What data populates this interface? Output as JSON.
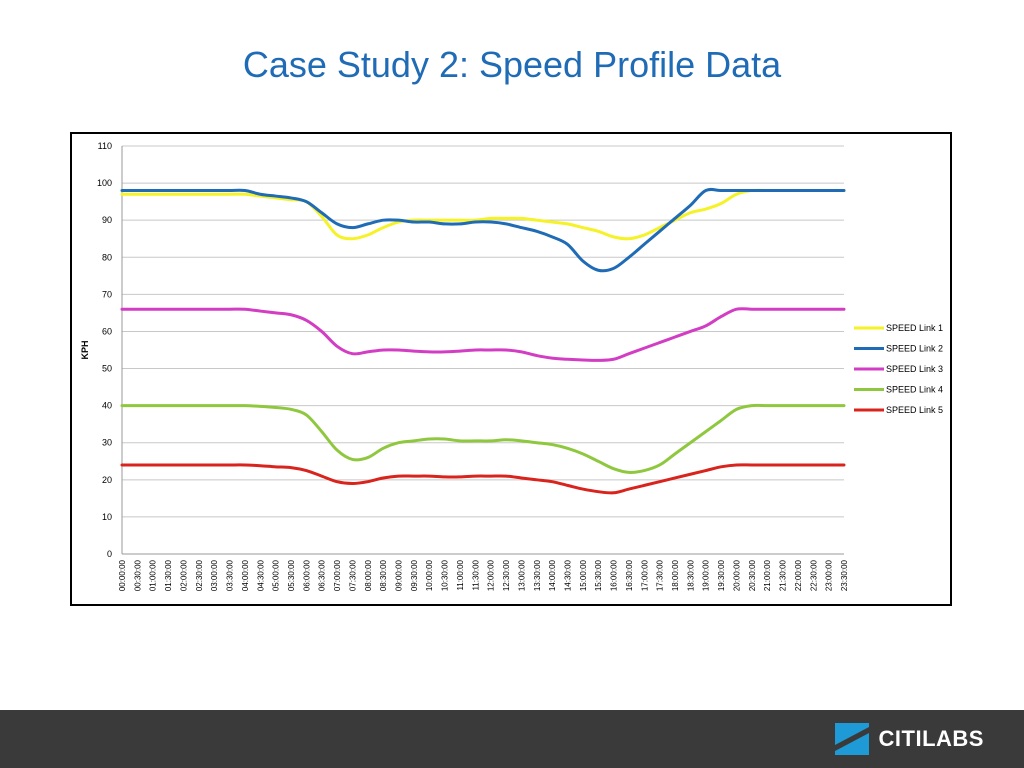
{
  "slide": {
    "title": "Case Study 2: Speed Profile Data"
  },
  "footer": {
    "brand": "CITILABS",
    "brand_color": "#1e9ad6",
    "background": "#3a3a3a"
  },
  "chart_data": {
    "type": "line",
    "ylabel": "KPH",
    "ylim": [
      0,
      110
    ],
    "yticks": [
      0,
      10,
      20,
      30,
      40,
      50,
      60,
      70,
      80,
      90,
      100,
      110
    ],
    "grid": "horizontal",
    "legend_position": "right",
    "categories": [
      "00:00:00",
      "00:30:00",
      "01:00:00",
      "01:30:00",
      "02:00:00",
      "02:30:00",
      "03:00:00",
      "03:30:00",
      "04:00:00",
      "04:30:00",
      "05:00:00",
      "05:30:00",
      "06:00:00",
      "06:30:00",
      "07:00:00",
      "07:30:00",
      "08:00:00",
      "08:30:00",
      "09:00:00",
      "09:30:00",
      "10:00:00",
      "10:30:00",
      "11:00:00",
      "11:30:00",
      "12:00:00",
      "12:30:00",
      "13:00:00",
      "13:30:00",
      "14:00:00",
      "14:30:00",
      "15:00:00",
      "15:30:00",
      "16:00:00",
      "16:30:00",
      "17:00:00",
      "17:30:00",
      "18:00:00",
      "18:30:00",
      "19:00:00",
      "19:30:00",
      "20:00:00",
      "20:30:00",
      "21:00:00",
      "21:30:00",
      "22:00:00",
      "22:30:00",
      "23:00:00",
      "23:30:00"
    ],
    "series": [
      {
        "name": "SPEED Link 1",
        "color": "#f5f227",
        "values": [
          97,
          97,
          97,
          97,
          97,
          97,
          97,
          97,
          97,
          96.5,
          96,
          95.5,
          95,
          91,
          86,
          85,
          86,
          88,
          89.5,
          90,
          90,
          90,
          90,
          90,
          90.5,
          90.5,
          90.5,
          90,
          89.5,
          89,
          88,
          87,
          85.5,
          85,
          86,
          88,
          90,
          92,
          93,
          94.5,
          97,
          98,
          98,
          98,
          98,
          98,
          98,
          98
        ]
      },
      {
        "name": "SPEED Link 2",
        "color": "#1f6bb5",
        "values": [
          98,
          98,
          98,
          98,
          98,
          98,
          98,
          98,
          98,
          97,
          96.5,
          96,
          95,
          92,
          89,
          88,
          89,
          90,
          90,
          89.5,
          89.5,
          89,
          89,
          89.5,
          89.5,
          89,
          88,
          87,
          85.5,
          83.5,
          79,
          76.5,
          77,
          80,
          83.5,
          87,
          90.5,
          94,
          98,
          98,
          98,
          98,
          98,
          98,
          98,
          98,
          98,
          98
        ]
      },
      {
        "name": "SPEED Link 3",
        "color": "#d23dc4",
        "values": [
          66,
          66,
          66,
          66,
          66,
          66,
          66,
          66,
          66,
          65.5,
          65,
          64.5,
          63,
          60,
          56,
          54,
          54.5,
          55,
          55,
          54.7,
          54.5,
          54.5,
          54.7,
          55,
          55,
          55,
          54.5,
          53.5,
          52.8,
          52.5,
          52.3,
          52.2,
          52.5,
          54,
          55.5,
          57,
          58.5,
          60,
          61.5,
          64,
          66,
          66,
          66,
          66,
          66,
          66,
          66,
          66
        ]
      },
      {
        "name": "SPEED Link 4",
        "color": "#8fc83f",
        "values": [
          40,
          40,
          40,
          40,
          40,
          40,
          40,
          40,
          40,
          39.8,
          39.5,
          39,
          37.5,
          33,
          28,
          25.5,
          26,
          28.5,
          30,
          30.5,
          31,
          31,
          30.5,
          30.5,
          30.5,
          30.8,
          30.5,
          30,
          29.5,
          28.5,
          27,
          25,
          23,
          22,
          22.5,
          24,
          27,
          30,
          33,
          36,
          39,
          40,
          40,
          40,
          40,
          40,
          40,
          40
        ]
      },
      {
        "name": "SPEED Link 5",
        "color": "#d9231d",
        "values": [
          24,
          24,
          24,
          24,
          24,
          24,
          24,
          24,
          24,
          23.8,
          23.5,
          23.3,
          22.5,
          21,
          19.5,
          19,
          19.5,
          20.5,
          21,
          21,
          21,
          20.8,
          20.8,
          21,
          21,
          21,
          20.5,
          20,
          19.5,
          18.5,
          17.5,
          16.8,
          16.5,
          17.5,
          18.5,
          19.5,
          20.5,
          21.5,
          22.5,
          23.5,
          24,
          24,
          24,
          24,
          24,
          24,
          24,
          24
        ]
      }
    ]
  }
}
